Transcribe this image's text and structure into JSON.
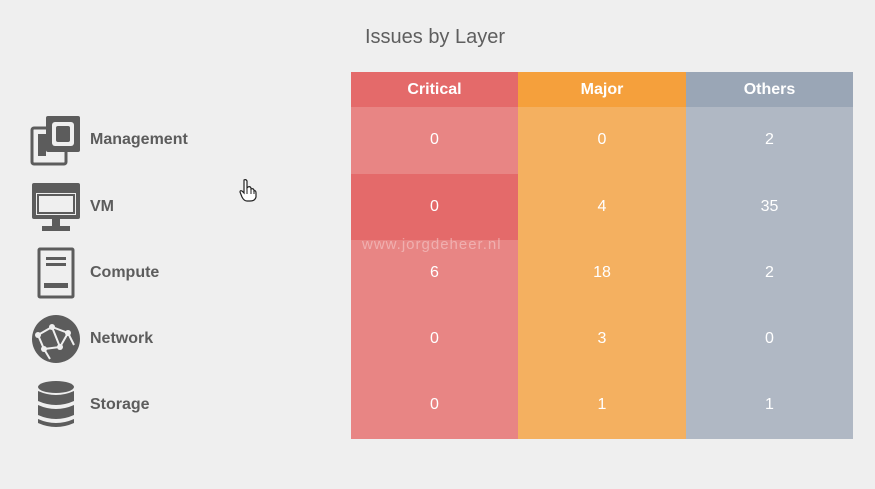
{
  "title": "Issues by Layer",
  "columns": [
    {
      "key": "critical",
      "label": "Critical",
      "color": "#e46a6a",
      "fill": "#e88584"
    },
    {
      "key": "major",
      "label": "Major",
      "color": "#f5a03c",
      "fill": "#f4b060"
    },
    {
      "key": "others",
      "label": "Others",
      "color": "#9aa6b6",
      "fill": "#b0b8c4"
    }
  ],
  "rows": [
    {
      "label": "Management",
      "icon": "management-icon",
      "critical": "0",
      "major": "0",
      "others": "2"
    },
    {
      "label": "VM",
      "icon": "vm-icon",
      "critical": "0",
      "major": "4",
      "others": "35"
    },
    {
      "label": "Compute",
      "icon": "compute-icon",
      "critical": "6",
      "major": "18",
      "others": "2"
    },
    {
      "label": "Network",
      "icon": "network-icon",
      "critical": "0",
      "major": "3",
      "others": "0"
    },
    {
      "label": "Storage",
      "icon": "storage-icon",
      "critical": "0",
      "major": "1",
      "others": "1"
    }
  ],
  "watermark": "www.jorgdeheer.nl"
}
